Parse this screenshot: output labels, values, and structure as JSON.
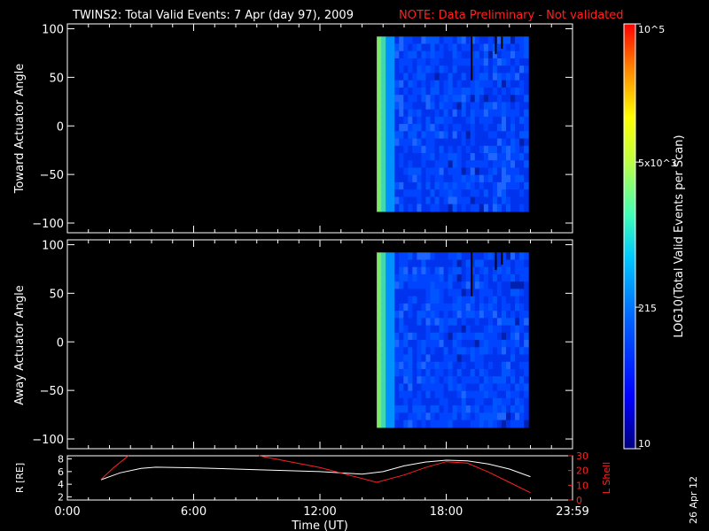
{
  "header": {
    "title": "TWINS2: Total Valid Events:  7 Apr (day  97), 2009",
    "note": "NOTE: Data Preliminary - Not validated",
    "note_color": "#ff1a1a"
  },
  "side_date": "26 Apr 12",
  "chart_data": [
    {
      "type": "heatmap",
      "ylabel": "Toward Actuator Angle",
      "yticks": [
        "100",
        "50",
        "0",
        "−50",
        "−100"
      ],
      "ylim": [
        -110,
        105
      ],
      "xlim": [
        0,
        24
      ],
      "data_start_hour": 14.7,
      "data_end_hour": 21.9,
      "angle_range": [
        -88,
        92
      ]
    },
    {
      "type": "heatmap",
      "ylabel": "Away Actuator Angle",
      "yticks": [
        "100",
        "50",
        "0",
        "−50",
        "−100"
      ],
      "ylim": [
        -110,
        105
      ],
      "xlim": [
        0,
        24
      ],
      "data_start_hour": 14.7,
      "data_end_hour": 21.9,
      "angle_range": [
        -88,
        92
      ]
    },
    {
      "type": "line",
      "ylabel_left": "R [RE]",
      "ylabel_right": "L Shell",
      "yticks_left": [
        "8",
        "6",
        "4",
        "2"
      ],
      "yticks_right": [
        "30",
        "20",
        "10",
        "0"
      ],
      "ylim_left": [
        1.5,
        8.5
      ],
      "ylim_right": [
        0,
        30
      ],
      "xlim": [
        0,
        24
      ],
      "xticks": [
        "0:00",
        "6:00",
        "12:00",
        "18:00",
        "23:59"
      ],
      "xlabel": "Time (UT)",
      "series": [
        {
          "axis": "left",
          "color": "#ffffff",
          "x": [
            1.6,
            2.5,
            3.5,
            4.2,
            6,
            9,
            12,
            14,
            15,
            16,
            17,
            18,
            19,
            20,
            21,
            22
          ],
          "y": [
            4.7,
            5.8,
            6.5,
            6.7,
            6.6,
            6.3,
            6.0,
            5.6,
            6.0,
            6.9,
            7.5,
            7.8,
            7.7,
            7.2,
            6.4,
            5.2
          ]
        },
        {
          "axis": "right",
          "color": "#ff2020",
          "x": [
            1.6,
            2.2,
            2.9
          ],
          "y": [
            14,
            22,
            30
          ]
        },
        {
          "axis": "right",
          "color": "#ff2020",
          "x": [
            9.1,
            12,
            14.7,
            16,
            17,
            18,
            19,
            20,
            21,
            22
          ],
          "y": [
            30,
            22,
            12,
            17,
            22,
            26,
            25,
            19,
            12,
            5
          ]
        }
      ]
    }
  ],
  "colorbar": {
    "label": "LOG10(Total Valid Events per Scan)",
    "ticks": [
      "10",
      "215",
      "5x10^3",
      "10^5"
    ],
    "tick_values": [
      10,
      215,
      5000,
      100000
    ]
  }
}
